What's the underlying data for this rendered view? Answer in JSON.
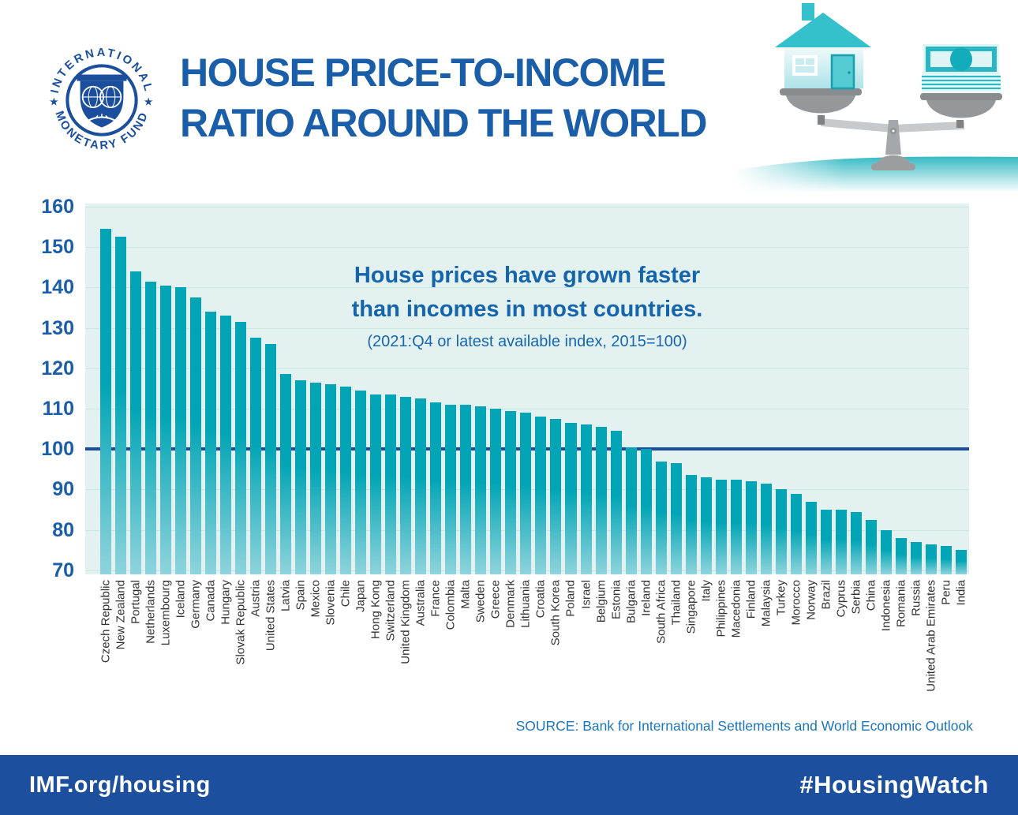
{
  "header": {
    "logo_top": "INTERNATIONAL",
    "logo_bottom": "MONETARY FUND",
    "logo_star": "★",
    "title_line1": "HOUSE PRICE-TO-INCOME",
    "title_line2": "RATIO AROUND THE WORLD"
  },
  "annotation": {
    "line1": "House prices have grown faster",
    "line2": "than incomes in most countries.",
    "note": "(2021:Q4 or latest available index, 2015=100)"
  },
  "source": "SOURCE: Bank for International Settlements and World Economic Outlook",
  "footer": {
    "left": "IMF.org/housing",
    "right": "#HousingWatch"
  },
  "colors": {
    "navy": "#1B4E9C",
    "title_blue": "#1A5DA8",
    "annotation_blue": "#1465AC",
    "source_blue": "#1C76BA",
    "plot_background": "#E4F1F1",
    "gridline": "#C9E6E3",
    "bar_teal_top": "#01A5B5",
    "bar_teal_bottom": "#8FD4DC",
    "footer_background": "#1C4F9D",
    "label_gray": "#333333"
  },
  "chart_data": {
    "type": "bar",
    "title": "House prices have grown faster than incomes in most countries.",
    "subtitle": "(2021:Q4 or latest available index, 2015=100)",
    "xlabel": "",
    "ylabel": "",
    "ylim": [
      70,
      160
    ],
    "yticks": [
      70,
      80,
      90,
      100,
      110,
      120,
      130,
      140,
      150,
      160
    ],
    "baseline": 100,
    "grid": true,
    "legend": "none",
    "bar_color_top": "#01A5B5",
    "bar_color_bottom": "#8FD4DC",
    "baseline_color": "#1B4E9C",
    "categories": [
      "Czech Republic",
      "New Zealand",
      "Portugal",
      "Netherlands",
      "Luxembourg",
      "Iceland",
      "Germany",
      "Canada",
      "Hungary",
      "Slovak Republic",
      "Austria",
      "United States",
      "Latvia",
      "Spain",
      "Mexico",
      "Slovenia",
      "Chile",
      "Japan",
      "Hong Kong",
      "Switzerland",
      "United Kingdom",
      "Australia",
      "France",
      "Colombia",
      "Malta",
      "Sweden",
      "Greece",
      "Denmark",
      "Lithuania",
      "Croatia",
      "South Korea",
      "Poland",
      "Israel",
      "Belgium",
      "Estonia",
      "Bulgaria",
      "Ireland",
      "South Africa",
      "Thailand",
      "Singapore",
      "Italy",
      "Philippines",
      "Macedonia",
      "Finland",
      "Malaysia",
      "Turkey",
      "Morocco",
      "Norway",
      "Brazil",
      "Cyprus",
      "Serbia",
      "China",
      "Indonesia",
      "Romania",
      "Russia",
      "United Arab Emirates",
      "Peru",
      "India"
    ],
    "values": [
      154.5,
      152.5,
      144,
      141.5,
      140.5,
      140,
      137.5,
      134,
      133,
      131.5,
      127.5,
      126,
      118.5,
      117,
      116.5,
      116,
      115.5,
      114.5,
      113.5,
      113.5,
      113,
      112.5,
      111.5,
      111,
      111,
      110.5,
      110,
      109.5,
      109,
      108,
      107.5,
      106.5,
      106,
      105.5,
      104.5,
      100.5,
      100,
      97,
      96.5,
      93.5,
      93,
      92.5,
      92.5,
      92,
      91.5,
      90,
      89,
      87,
      85,
      85,
      84.5,
      82.5,
      80,
      78,
      77,
      76.5,
      76,
      75
    ]
  }
}
